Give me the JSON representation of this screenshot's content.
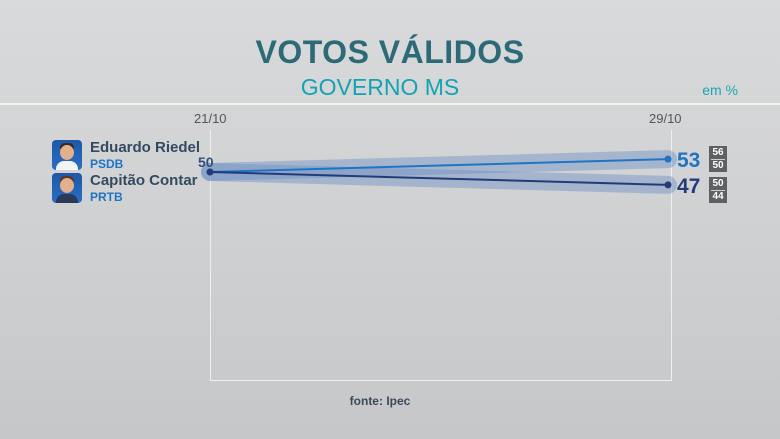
{
  "header": {
    "title": "VOTOS VÁLIDOS",
    "subtitle": "GOVERNO MS",
    "unit": "em %",
    "source": "fonte: Ipec"
  },
  "candidates": [
    {
      "name": "Eduardo Riedel",
      "party": "PSDB",
      "range": [
        "56",
        "50"
      ]
    },
    {
      "name": "Capitão Contar",
      "party": "PRTB",
      "range": [
        "50",
        "44"
      ]
    }
  ],
  "chart_data": {
    "type": "line",
    "x": [
      "21/10",
      "29/10"
    ],
    "ylim": [
      0,
      100
    ],
    "grid": false,
    "series": [
      {
        "name": "Eduardo Riedel",
        "values": [
          50,
          53
        ],
        "color": "#1f74c4",
        "start_label": "50",
        "end_label": "53"
      },
      {
        "name": "Capitão Contar",
        "values": [
          50,
          47
        ],
        "color": "#243b7a",
        "start_label": "",
        "end_label": "47"
      }
    ]
  }
}
